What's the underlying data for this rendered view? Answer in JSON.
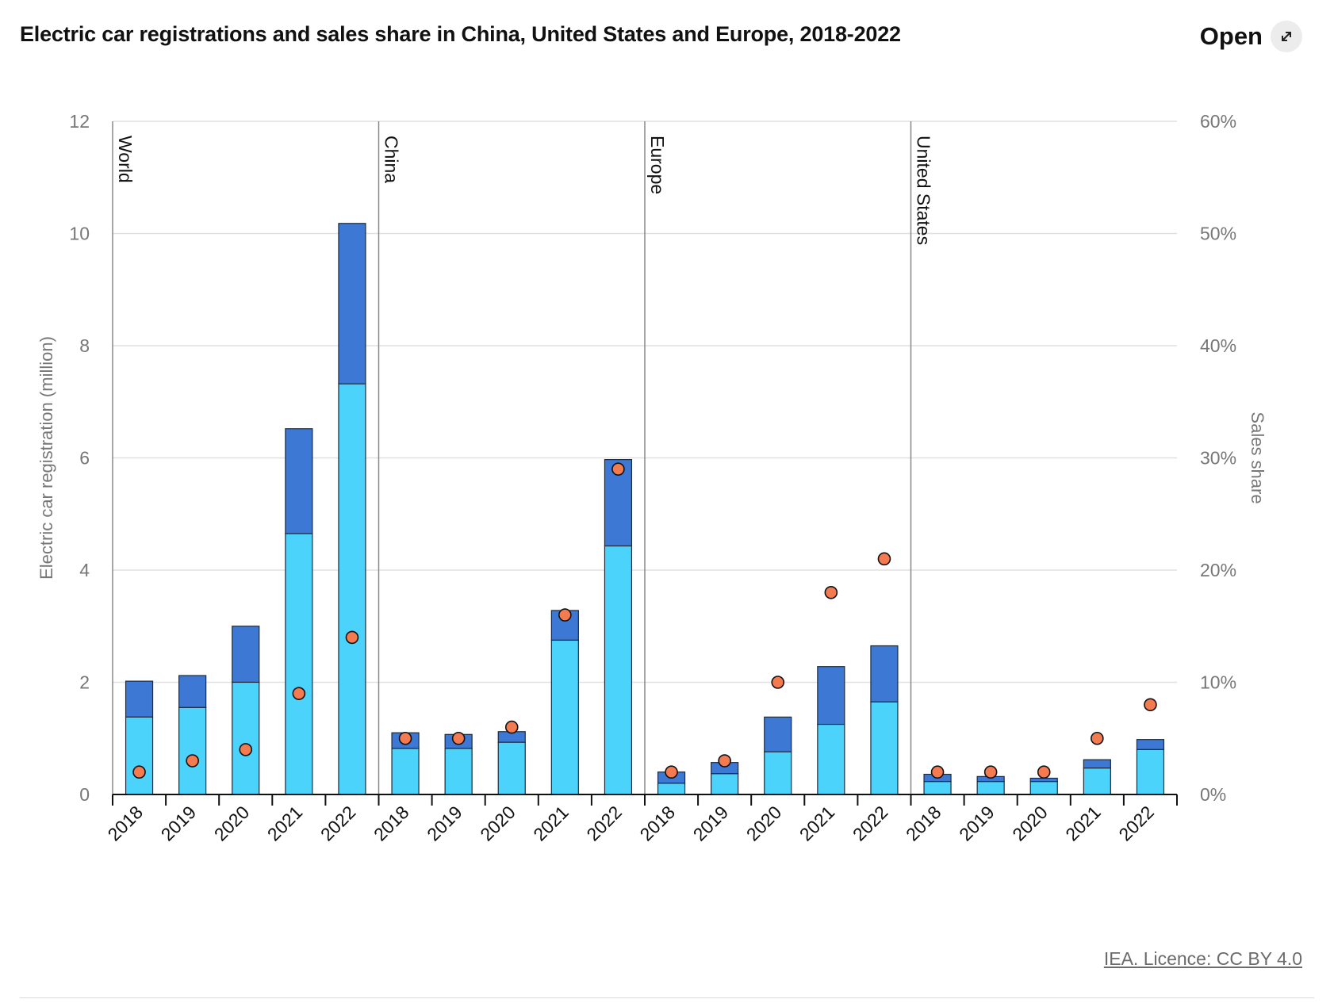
{
  "header": {
    "title": "Electric car registrations and sales share in China, United States and Europe, 2018-2022",
    "open_label": "Open",
    "open_icon": "expand-arrows-icon"
  },
  "footer": {
    "licence": "IEA. Licence: CC BY 4.0"
  },
  "chart_data": {
    "type": "bar",
    "stacked": true,
    "ylabel": "Electric car registration (million)",
    "ylabel_right": "Sales share",
    "ylim": [
      0,
      12
    ],
    "yticks": [
      "0",
      "2",
      "4",
      "6",
      "8",
      "10",
      "12"
    ],
    "ylim_right": [
      0,
      60
    ],
    "yticks_right": [
      "0%",
      "10%",
      "20%",
      "30%",
      "40%",
      "50%",
      "60%"
    ],
    "grid": true,
    "legend": "none",
    "colors": {
      "lower": "#4bd3fb",
      "upper": "#3d78d4",
      "share": "#f47a4f",
      "grid": "#e0e0e0",
      "divider": "#888888"
    },
    "categories": [
      "2018",
      "2019",
      "2020",
      "2021",
      "2022"
    ],
    "groups": [
      {
        "name": "World",
        "lower": [
          1.38,
          1.55,
          2.0,
          4.65,
          7.32
        ],
        "total": [
          2.02,
          2.12,
          3.0,
          6.52,
          10.18
        ],
        "share": [
          2,
          3,
          4,
          9,
          14
        ]
      },
      {
        "name": "China",
        "lower": [
          0.82,
          0.82,
          0.93,
          2.75,
          4.43
        ],
        "total": [
          1.1,
          1.07,
          1.12,
          3.28,
          5.97
        ],
        "share": [
          5,
          5,
          6,
          16,
          29
        ]
      },
      {
        "name": "Europe",
        "lower": [
          0.2,
          0.37,
          0.76,
          1.25,
          1.65
        ],
        "total": [
          0.4,
          0.57,
          1.38,
          2.28,
          2.65
        ],
        "share": [
          2,
          3,
          10,
          18,
          21
        ]
      },
      {
        "name": "United States",
        "lower": [
          0.23,
          0.23,
          0.23,
          0.47,
          0.8
        ],
        "total": [
          0.36,
          0.32,
          0.29,
          0.62,
          0.98
        ],
        "share": [
          2,
          2,
          2,
          5,
          8
        ]
      }
    ]
  }
}
